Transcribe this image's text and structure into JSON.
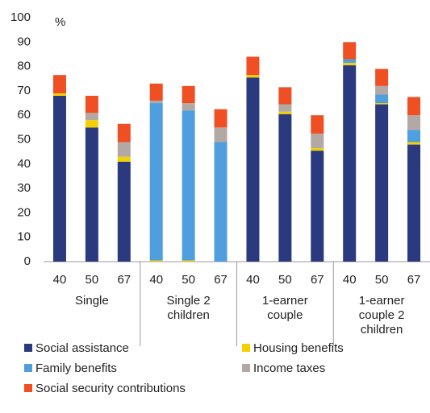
{
  "chart_data": {
    "type": "stacked_bar",
    "y_label": "%",
    "categories": [
      "40",
      "50",
      "67",
      "40",
      "50",
      "67",
      "40",
      "50",
      "67",
      "40",
      "50",
      "67"
    ],
    "groups": [
      "Single",
      "Single  2 children",
      "1-earner couple",
      "1-earner couple 2 children"
    ],
    "series": [
      {
        "name": "Social assistance",
        "color": "#2b3a7e",
        "values": [
          68,
          55,
          41,
          0,
          0,
          0,
          75.5,
          60.5,
          45.5,
          80.5,
          64.5,
          48
        ]
      },
      {
        "name": "Housing benefits",
        "color": "#f5d000",
        "values": [
          1,
          3,
          2,
          0.5,
          0.5,
          0,
          1,
          1,
          1,
          1,
          0.5,
          1
        ]
      },
      {
        "name": "Family benefits",
        "color": "#4f9fde",
        "values": [
          0,
          0,
          0,
          64.5,
          61.5,
          49,
          0,
          0,
          0,
          1.5,
          3.5,
          5
        ]
      },
      {
        "name": "Income taxes",
        "color": "#b3a9a4",
        "values": [
          0,
          3,
          6,
          1,
          3,
          6,
          0,
          3,
          6,
          0,
          3.5,
          6
        ]
      },
      {
        "name": "Social security contributions",
        "color": "#f04e23",
        "values": [
          7.5,
          7,
          7.5,
          7,
          7,
          7.5,
          7.5,
          7,
          7.5,
          7,
          7,
          7.5
        ]
      }
    ],
    "ylim": [
      0,
      100
    ],
    "yticks": [
      0,
      10,
      20,
      30,
      40,
      50,
      60,
      70,
      80,
      90,
      100
    ],
    "grid": false
  }
}
